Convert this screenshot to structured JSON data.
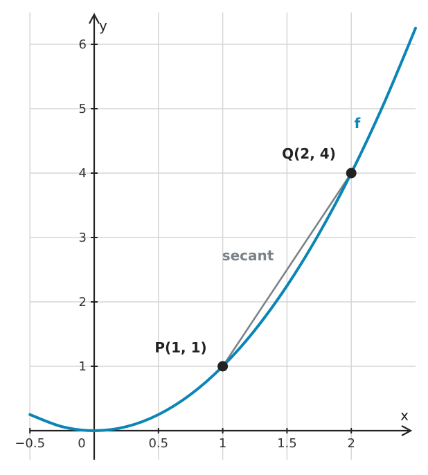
{
  "chart_data": {
    "type": "line",
    "title": "",
    "xlabel": "x",
    "ylabel": "y",
    "xlim": [
      -0.5,
      2.5
    ],
    "ylim": [
      -0.45,
      6.4
    ],
    "grid": true,
    "x_ticks": [
      {
        "value": -0.5,
        "label": "−0.5"
      },
      {
        "value": 0,
        "label": "0"
      },
      {
        "value": 0.5,
        "label": "0.5"
      },
      {
        "value": 1,
        "label": "1"
      },
      {
        "value": 1.5,
        "label": "1.5"
      },
      {
        "value": 2,
        "label": "2"
      }
    ],
    "y_ticks": [
      {
        "value": 1,
        "label": "1"
      },
      {
        "value": 2,
        "label": "2"
      },
      {
        "value": 3,
        "label": "3"
      },
      {
        "value": 4,
        "label": "4"
      },
      {
        "value": 5,
        "label": "5"
      },
      {
        "value": 6,
        "label": "6"
      }
    ],
    "series": [
      {
        "name": "f",
        "color": "#0a85b5",
        "x": [
          -0.5,
          -0.25,
          0,
          0.25,
          0.5,
          0.75,
          1,
          1.25,
          1.5,
          1.75,
          2,
          2.25,
          2.5
        ],
        "y": [
          0.25,
          0.0625,
          0,
          0.0625,
          0.25,
          0.5625,
          1,
          1.5625,
          2.25,
          3.0625,
          4,
          5.0625,
          6.25
        ]
      },
      {
        "name": "secant",
        "color": "#7a8288",
        "x": [
          1,
          2
        ],
        "y": [
          1,
          4
        ]
      }
    ],
    "points": [
      {
        "label": "P(1, 1)",
        "x": 1,
        "y": 1
      },
      {
        "label": "Q(2, 4)",
        "x": 2,
        "y": 4
      }
    ]
  }
}
